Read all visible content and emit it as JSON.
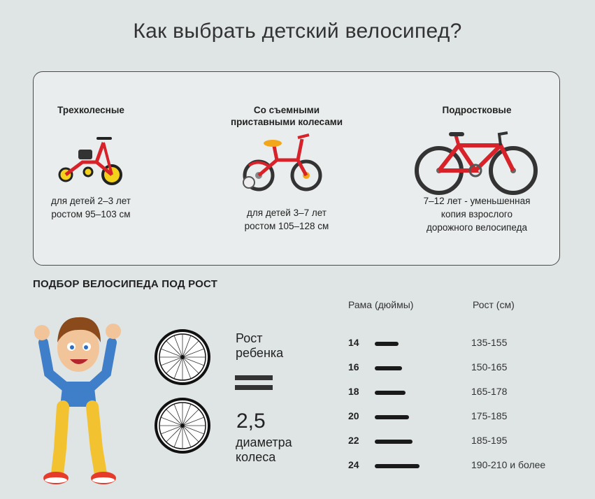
{
  "title": "Как выбрать детский велосипед?",
  "bike_types": [
    {
      "label_lines": [
        "Трехколесные"
      ],
      "desc_lines": [
        "для детей 2–3 лет",
        "ростом 95–103 см"
      ],
      "icon": "tricycle-icon"
    },
    {
      "label_lines": [
        "Со съемными",
        "приставными колесами"
      ],
      "desc_lines": [
        "для детей 3–7 лет",
        "ростом 105–128 см"
      ],
      "icon": "training-wheels-bike-icon"
    },
    {
      "label_lines": [
        "Подростковые"
      ],
      "desc_lines": [
        "7–12 лет - уменьшенная",
        "копия взрослого",
        "дорожного велосипеда"
      ],
      "icon": "teen-bike-icon"
    }
  ],
  "section_title": "ПОДБОР ВЕЛОСИПЕДА ПОД РОСТ",
  "formula": {
    "line1": "Рост",
    "line2": "ребенка",
    "number": "2,5",
    "line3": "диаметра",
    "line4": "колеса"
  },
  "table": {
    "col_frame": "Рама (дюймы)",
    "col_height": "Рост (см)",
    "rows": [
      {
        "frame": "14",
        "height": "135-155",
        "bar": 0.35
      },
      {
        "frame": "16",
        "height": "150-165",
        "bar": 0.4
      },
      {
        "frame": "18",
        "height": "165-178",
        "bar": 0.45
      },
      {
        "frame": "20",
        "height": "175-185",
        "bar": 0.5
      },
      {
        "frame": "22",
        "height": "185-195",
        "bar": 0.55
      },
      {
        "frame": "24",
        "height": "190-210 и более",
        "bar": 0.65
      }
    ]
  },
  "colors": {
    "bike_red": "#d8222a",
    "seat_orange": "#f2a71b",
    "boy_shirt": "#3f7fc9",
    "boy_pants": "#f2c231",
    "boy_hair": "#8a4a1c"
  }
}
